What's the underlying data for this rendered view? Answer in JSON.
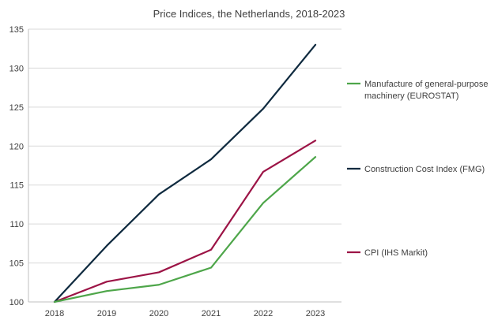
{
  "chart_data": {
    "type": "line",
    "title": "Price Indices, the Netherlands, 2018-2023",
    "xlabel": "",
    "ylabel": "",
    "categories": [
      "2018",
      "2019",
      "2020",
      "2021",
      "2022",
      "2023"
    ],
    "ylim": [
      100,
      135
    ],
    "yticks": [
      100,
      105,
      110,
      115,
      120,
      125,
      130,
      135
    ],
    "grid": "horizontal",
    "legend_position": "right",
    "series": [
      {
        "name": "Manufacture of general-purpose machinery (EUROSTAT)",
        "legend_lines": [
          "Manufacture of general-purpose",
          "machinery (EUROSTAT)"
        ],
        "color": "#4ea64a",
        "values": [
          100.0,
          101.4,
          102.2,
          104.4,
          112.7,
          118.6
        ]
      },
      {
        "name": "Construction Cost Index (FMG)",
        "legend_lines": [
          "Construction Cost Index (FMG)"
        ],
        "color": "#0f2a3f",
        "values": [
          100.0,
          107.2,
          113.8,
          118.3,
          124.8,
          133.0
        ]
      },
      {
        "name": "CPI (IHS Markit)",
        "legend_lines": [
          "CPI (IHS Markit)"
        ],
        "color": "#9c1446",
        "values": [
          100.0,
          102.6,
          103.8,
          106.7,
          116.7,
          120.7
        ]
      }
    ]
  }
}
